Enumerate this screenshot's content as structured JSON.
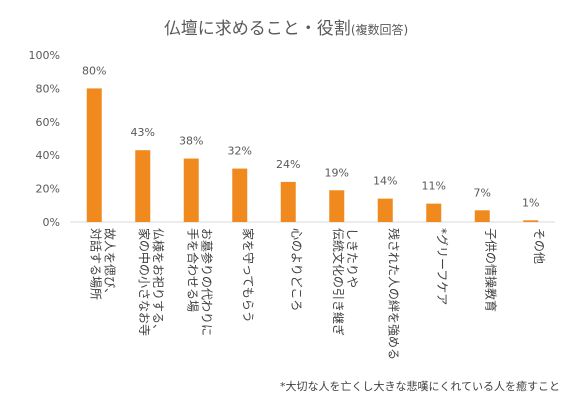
{
  "chart_data": {
    "type": "bar",
    "title": "仏壇に求めること・役割",
    "subtitle": "(複数回答)",
    "categories": [
      "故人を偲び、対話する場所",
      "仏様をお祀りする、家の中の小さなお寺",
      "お墓参りの代わりに手を合わせる場",
      "家を守ってもらう",
      "心のよりどころ",
      "しきたりや伝統文化の引き継ぎ",
      "残された人の絆を強める",
      "*グリーフケア",
      "子供の情操教育",
      "その他"
    ],
    "category_lines": [
      [
        "故人を偲び、",
        "対話する場所"
      ],
      [
        "仏様をお祀りする、",
        "家の中の小さなお寺"
      ],
      [
        "お墓参りの代わりに",
        "手を合わせる場"
      ],
      [
        "家を守ってもらう"
      ],
      [
        "心のよりどころ"
      ],
      [
        "しきたりや",
        "伝統文化の引き継ぎ"
      ],
      [
        "残された人の絆を強める"
      ],
      [
        "*グリーフケア"
      ],
      [
        "子供の情操教育"
      ],
      [
        "その他"
      ]
    ],
    "values": [
      80,
      43,
      38,
      32,
      24,
      19,
      14,
      11,
      7,
      1
    ],
    "value_labels": [
      "80%",
      "43%",
      "38%",
      "32%",
      "24%",
      "19%",
      "14%",
      "11%",
      "7%",
      "1%"
    ],
    "ylim": [
      0,
      100
    ],
    "y_ticks": [
      0,
      20,
      40,
      60,
      80,
      100
    ],
    "y_tick_labels": [
      "0%",
      "20%",
      "40%",
      "60%",
      "80%",
      "100%"
    ],
    "xlabel": "",
    "ylabel": "",
    "grid": false,
    "bar_color": "#F08A1E",
    "note": "*大切な人を亡くし大きな悲嘆にくれている人を癒すこと"
  }
}
